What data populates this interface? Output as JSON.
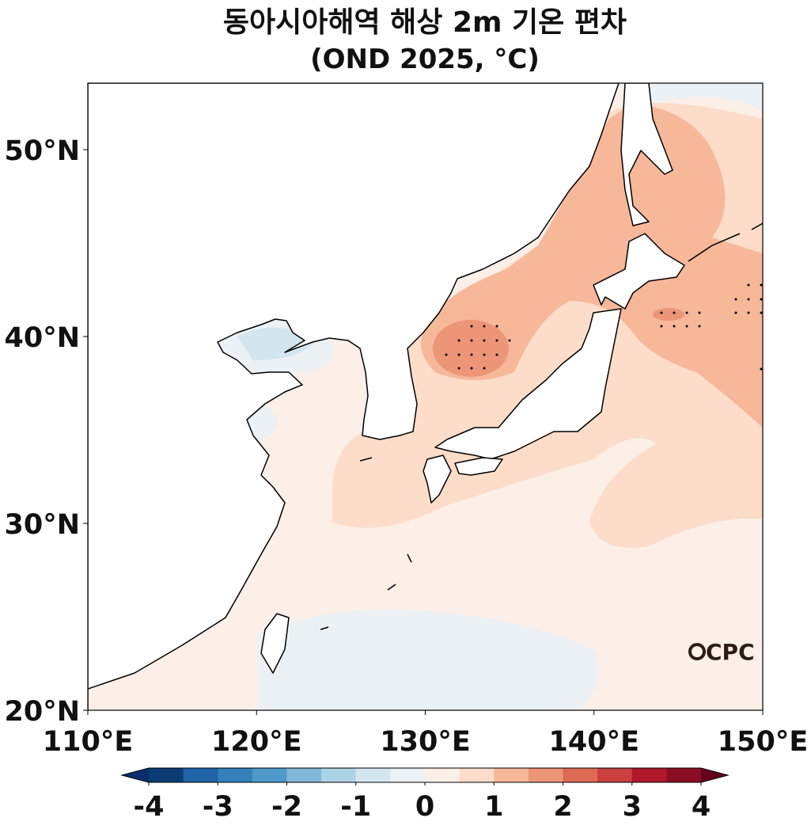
{
  "title": [
    "동아시아해역 해상 2m 기온 편차",
    "(OND 2025, °C)"
  ],
  "map": {
    "lonlim": [
      110,
      150
    ],
    "latlim": [
      20,
      53.56
    ],
    "lon_ticks": [
      {
        "value": 110,
        "label": "110°E"
      },
      {
        "value": 120,
        "label": "120°E"
      },
      {
        "value": 130,
        "label": "130°E"
      },
      {
        "value": 140,
        "label": "140°E"
      },
      {
        "value": 150,
        "label": "150°E"
      }
    ],
    "lat_ticks": [
      {
        "value": 20,
        "label": "20°N"
      },
      {
        "value": 30,
        "label": "30°N"
      },
      {
        "value": 40,
        "label": "40°N"
      },
      {
        "value": 50,
        "label": "50°N"
      }
    ]
  },
  "colorbar": {
    "ticks": [
      -4,
      -3,
      -2,
      -1,
      0,
      1,
      2,
      3,
      4
    ],
    "colors": [
      "#0b3d74",
      "#1f63a8",
      "#3480bd",
      "#4f9acb",
      "#82b8d8",
      "#acd2e6",
      "#d3e6f0",
      "#ebf1f4",
      "#fbefe7",
      "#fddcc9",
      "#f7b799",
      "#ec9577",
      "#de6a54",
      "#c9403f",
      "#b1182b",
      "#8b0d25"
    ],
    "extend_colors": [
      "#08306b",
      "#67001f"
    ]
  },
  "logo": "CPC"
}
